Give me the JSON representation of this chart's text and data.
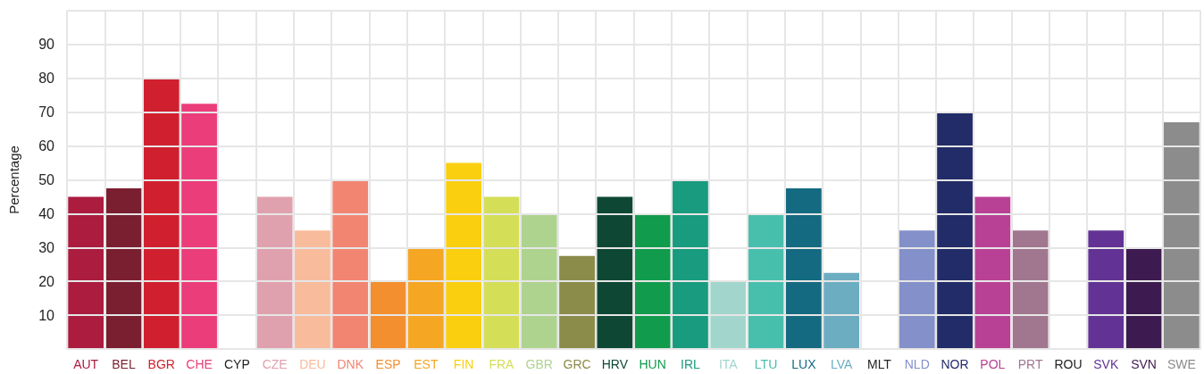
{
  "chart_data": {
    "type": "bar",
    "ylabel": "Percentage",
    "categories": [
      "AUT",
      "BEL",
      "BGR",
      "CHE",
      "CYP",
      "CZE",
      "DEU",
      "DNK",
      "ESP",
      "EST",
      "FIN",
      "FRA",
      "GBR",
      "GRC",
      "HRV",
      "HUN",
      "IRL",
      "ITA",
      "LTU",
      "LUX",
      "LVA",
      "MLT",
      "NLD",
      "NOR",
      "POL",
      "PRT",
      "ROU",
      "SVK",
      "SVN",
      "SWE"
    ],
    "values": [
      45,
      47.5,
      80,
      72.5,
      null,
      45,
      35,
      50,
      20,
      30,
      55,
      45,
      40,
      27.5,
      45,
      40,
      50,
      20,
      40,
      47.5,
      22.5,
      null,
      35,
      70,
      45,
      35,
      null,
      35,
      30,
      67
    ],
    "colors": [
      "#ab1c3f",
      "#7a1f30",
      "#d0202f",
      "#eb3d7a",
      "#222222",
      "#e0a1ae",
      "#f8bb9b",
      "#f28572",
      "#f38f2f",
      "#f5a623",
      "#f9cf10",
      "#d4de57",
      "#aed38f",
      "#8b8b4a",
      "#0e4834",
      "#119b4d",
      "#189b7e",
      "#a2d6cc",
      "#48bfad",
      "#146a80",
      "#6cadc2",
      "#222222",
      "#8390c9",
      "#222c68",
      "#b94195",
      "#a1768f",
      "#222222",
      "#623394",
      "#3d1a4f",
      "#8c8c8c"
    ],
    "ylim": [
      0,
      100
    ],
    "yticks": [
      {
        "value": 0,
        "label": null
      },
      10,
      20,
      30,
      40,
      50,
      60,
      70,
      80,
      90,
      {
        "value": 100,
        "label": null
      }
    ],
    "grid": true
  }
}
